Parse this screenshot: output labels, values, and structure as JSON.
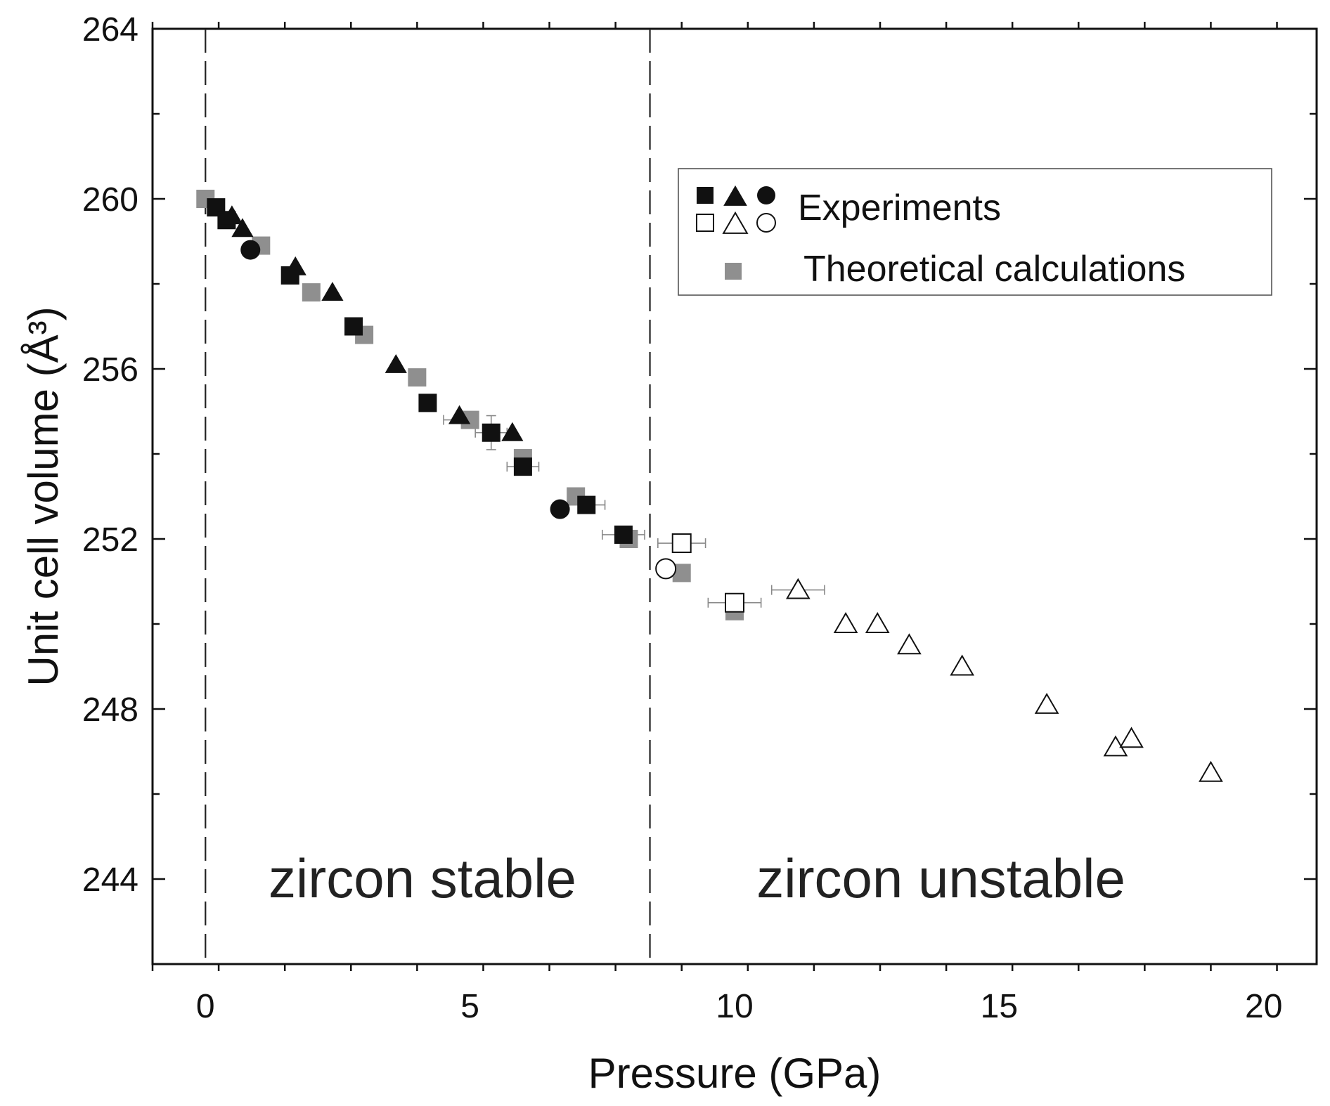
{
  "chart_data": {
    "type": "scatter",
    "xlabel": "Pressure (GPa)",
    "ylabel": "Unit cell volume (Å³)",
    "xlim": [
      -1,
      21
    ],
    "ylim": [
      242,
      264
    ],
    "xticks": [
      0,
      5,
      10,
      15,
      20
    ],
    "xtick_labels": [
      "0",
      "5",
      "10",
      "15",
      "20"
    ],
    "yticks": [
      244,
      248,
      252,
      256,
      260,
      264
    ],
    "ytick_labels": [
      "244",
      "248",
      "252",
      "256",
      "260",
      "264"
    ],
    "boundaries": [
      0,
      8.4
    ],
    "regions": [
      {
        "label": "zircon stable",
        "x": 4.1,
        "y": 244
      },
      {
        "label": "zircon unstable",
        "x": 13.9,
        "y": 244
      }
    ],
    "legend": {
      "position": "upper-right",
      "experiments_label": "Experiments",
      "theory_label": "Theoretical calculations"
    },
    "series": [
      {
        "name": "Theoretical calculations",
        "marker": "square",
        "fill": "#8f8f8f",
        "points": [
          [
            0,
            260.0
          ],
          [
            1.05,
            258.9
          ],
          [
            2.0,
            257.8
          ],
          [
            3.0,
            256.8
          ],
          [
            4.0,
            255.8
          ],
          [
            5.0,
            254.8
          ],
          [
            6.0,
            253.9
          ],
          [
            7.0,
            253.0
          ],
          [
            8.0,
            252.0
          ],
          [
            9.0,
            251.2
          ],
          [
            10.0,
            250.3
          ]
        ]
      },
      {
        "name": "Experiments (filled square)",
        "marker": "square",
        "fill": "#111111",
        "points": [
          [
            0.2,
            259.8
          ],
          [
            0.4,
            259.5
          ],
          [
            1.6,
            258.2
          ],
          [
            2.8,
            257.0
          ],
          [
            4.2,
            255.2
          ],
          [
            5.4,
            254.5
          ],
          [
            6.0,
            253.7
          ],
          [
            7.2,
            252.8
          ],
          [
            7.9,
            252.1
          ]
        ]
      },
      {
        "name": "Experiments (filled triangle)",
        "marker": "triangle",
        "fill": "#111111",
        "points": [
          [
            0.5,
            259.6
          ],
          [
            0.7,
            259.3
          ],
          [
            1.7,
            258.4
          ],
          [
            2.4,
            257.8
          ],
          [
            3.6,
            256.1
          ],
          [
            4.8,
            254.9
          ],
          [
            5.8,
            254.5
          ]
        ]
      },
      {
        "name": "Experiments (filled circle)",
        "marker": "circle",
        "fill": "#111111",
        "points": [
          [
            0.85,
            258.8
          ],
          [
            6.7,
            252.7
          ]
        ]
      },
      {
        "name": "Experiments (open square)",
        "marker": "square",
        "fill": "none",
        "points": [
          [
            9.0,
            251.9
          ],
          [
            10.0,
            250.5
          ]
        ]
      },
      {
        "name": "Experiments (open triangle)",
        "marker": "triangle",
        "fill": "none",
        "points": [
          [
            11.2,
            250.8
          ],
          [
            12.1,
            250.0
          ],
          [
            12.7,
            250.0
          ],
          [
            13.3,
            249.5
          ],
          [
            14.3,
            249.0
          ],
          [
            15.9,
            248.1
          ],
          [
            17.2,
            247.1
          ],
          [
            17.5,
            247.3
          ],
          [
            19.0,
            246.5
          ]
        ]
      },
      {
        "name": "Experiments (open circle)",
        "marker": "circle",
        "fill": "none",
        "points": [
          [
            8.7,
            251.3
          ]
        ]
      }
    ],
    "error_bars": [
      {
        "x": 4.8,
        "y": 254.8,
        "xerr": 0.3,
        "yerr": 0
      },
      {
        "x": 5.4,
        "y": 254.5,
        "xerr": 0.3,
        "yerr": 0.4
      },
      {
        "x": 6.0,
        "y": 253.7,
        "xerr": 0.3,
        "yerr": 0
      },
      {
        "x": 7.2,
        "y": 252.8,
        "xerr": 0.35,
        "yerr": 0
      },
      {
        "x": 7.9,
        "y": 252.1,
        "xerr": 0.4,
        "yerr": 0
      },
      {
        "x": 9.0,
        "y": 251.9,
        "xerr": 0.45,
        "yerr": 0
      },
      {
        "x": 10.0,
        "y": 250.5,
        "xerr": 0.5,
        "yerr": 0
      },
      {
        "x": 11.2,
        "y": 250.8,
        "xerr": 0.5,
        "yerr": 0
      }
    ]
  }
}
